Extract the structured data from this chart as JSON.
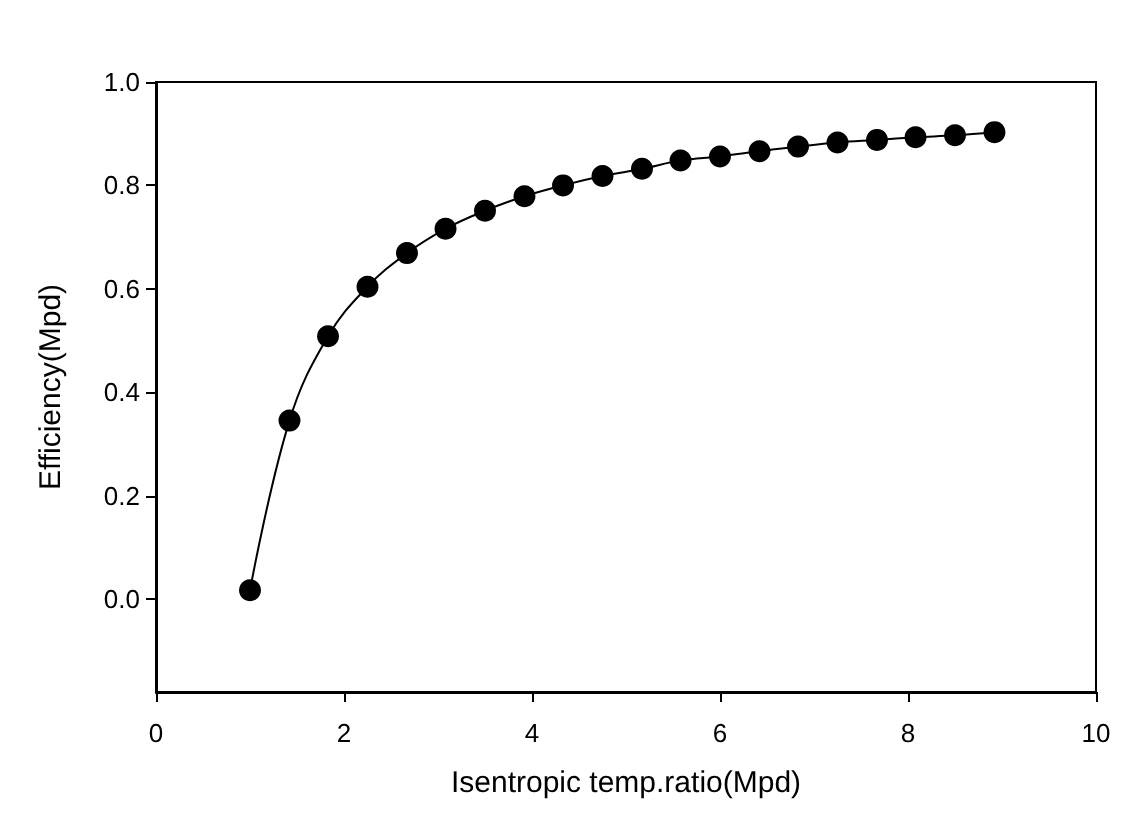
{
  "chart_data": {
    "type": "line",
    "xlabel": "Isentropic temp.ratio(Mpd)",
    "ylabel": "Efficiency(Mpd)",
    "x": [
      1.0,
      1.42,
      1.83,
      2.25,
      2.67,
      3.08,
      3.5,
      3.92,
      4.33,
      4.75,
      5.17,
      5.58,
      6.0,
      6.42,
      6.83,
      7.25,
      7.67,
      8.08,
      8.5,
      8.92
    ],
    "series": [
      {
        "color": "#000000",
        "values": [
          0.017,
          0.345,
          0.508,
          0.604,
          0.669,
          0.716,
          0.751,
          0.779,
          0.8,
          0.818,
          0.832,
          0.848,
          0.856,
          0.866,
          0.875,
          0.883,
          0.888,
          0.893,
          0.897,
          0.903
        ]
      }
    ],
    "xlim": [
      0,
      10
    ],
    "xticks": [
      0,
      2,
      4,
      6,
      8,
      10
    ],
    "ylim": [
      -0.18,
      1.0
    ],
    "yticks": [
      {
        "value": 0,
        "label": "0.0"
      },
      {
        "value": 0.2,
        "label": "0.2"
      },
      {
        "value": 0.4,
        "label": "0.4"
      },
      {
        "value": 0.6,
        "label": "0.6"
      },
      {
        "value": 0.8,
        "label": "0.8"
      },
      {
        "value": 1.0,
        "label": "1.0"
      }
    ],
    "marker": "circle",
    "line_style": "solid"
  }
}
